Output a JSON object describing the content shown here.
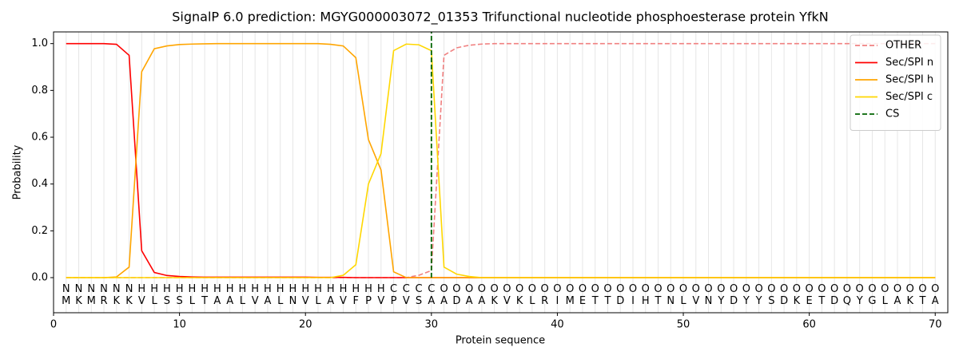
{
  "chart_data": {
    "type": "line",
    "title": "SignalP 6.0 prediction: MGYG000003072_01353 Trifunctional nucleotide phosphoesterase protein YfkN",
    "xlabel": "Protein sequence",
    "ylabel": "Probability",
    "x": [
      1,
      2,
      3,
      4,
      5,
      6,
      7,
      8,
      9,
      10,
      11,
      12,
      13,
      14,
      15,
      16,
      17,
      18,
      19,
      20,
      21,
      22,
      23,
      24,
      25,
      26,
      27,
      28,
      29,
      30,
      31,
      32,
      33,
      34,
      35,
      36,
      37,
      38,
      39,
      40,
      41,
      42,
      43,
      44,
      45,
      46,
      47,
      48,
      49,
      50,
      51,
      52,
      53,
      54,
      55,
      56,
      57,
      58,
      59,
      60,
      61,
      62,
      63,
      64,
      65,
      66,
      67,
      68,
      69,
      70
    ],
    "series": [
      {
        "name": "OTHER",
        "color": "#f08080",
        "dashed": true,
        "values": [
          0,
          0,
          0,
          0,
          0,
          0,
          0,
          0,
          0,
          0,
          0,
          0,
          0,
          0,
          0,
          0,
          0,
          0,
          0,
          0,
          0,
          0,
          0,
          0,
          0,
          0,
          0,
          0,
          0.01,
          0.03,
          0.95,
          0.982,
          0.993,
          0.998,
          1,
          1,
          1,
          1,
          1,
          1,
          1,
          1,
          1,
          1,
          1,
          1,
          1,
          1,
          1,
          1,
          1,
          1,
          1,
          1,
          1,
          1,
          1,
          1,
          1,
          1,
          1,
          1,
          1,
          1,
          1,
          1,
          1,
          1,
          1,
          1
        ]
      },
      {
        "name": "Sec/SPI n",
        "color": "#ff0000",
        "dashed": false,
        "values": [
          1,
          1,
          1,
          1,
          0.997,
          0.95,
          0.115,
          0.022,
          0.009,
          0.005,
          0.003,
          0.002,
          0.002,
          0.002,
          0.002,
          0.002,
          0.002,
          0.002,
          0.002,
          0.002,
          0.001,
          0.001,
          0.001,
          0,
          0,
          0,
          0,
          0,
          0,
          0,
          0,
          0,
          0,
          0,
          0,
          0,
          0,
          0,
          0,
          0,
          0,
          0,
          0,
          0,
          0,
          0,
          0,
          0,
          0,
          0,
          0,
          0,
          0,
          0,
          0,
          0,
          0,
          0,
          0,
          0,
          0,
          0,
          0,
          0,
          0,
          0,
          0,
          0,
          0,
          0
        ]
      },
      {
        "name": "Sec/SPI h",
        "color": "#ffa500",
        "dashed": false,
        "values": [
          0,
          0,
          0,
          0,
          0.003,
          0.045,
          0.88,
          0.978,
          0.99,
          0.996,
          0.998,
          0.999,
          1,
          1,
          1,
          1,
          1,
          1,
          1,
          1,
          1,
          0.997,
          0.99,
          0.94,
          0.59,
          0.46,
          0.025,
          0,
          0,
          0,
          0,
          0,
          0,
          0,
          0,
          0,
          0,
          0,
          0,
          0,
          0,
          0,
          0,
          0,
          0,
          0,
          0,
          0,
          0,
          0,
          0,
          0,
          0,
          0,
          0,
          0,
          0,
          0,
          0,
          0,
          0,
          0,
          0,
          0,
          0,
          0,
          0,
          0,
          0,
          0
        ]
      },
      {
        "name": "Sec/SPI c",
        "color": "#ffd700",
        "dashed": false,
        "values": [
          0,
          0,
          0,
          0,
          0,
          0,
          0,
          0,
          0,
          0,
          0,
          0,
          0,
          0,
          0,
          0,
          0,
          0,
          0,
          0,
          0,
          0,
          0.01,
          0.055,
          0.4,
          0.53,
          0.97,
          0.998,
          0.995,
          0.97,
          0.045,
          0.015,
          0.005,
          0,
          0,
          0,
          0,
          0,
          0,
          0,
          0,
          0,
          0,
          0,
          0,
          0,
          0,
          0,
          0,
          0,
          0,
          0,
          0,
          0,
          0,
          0,
          0,
          0,
          0,
          0,
          0,
          0,
          0,
          0,
          0,
          0,
          0,
          0,
          0,
          0
        ]
      }
    ],
    "cs": {
      "name": "CS",
      "color": "#006400",
      "x": 30
    },
    "residues": [
      "M",
      "K",
      "M",
      "R",
      "K",
      "K",
      "V",
      "L",
      "S",
      "S",
      "L",
      "T",
      "A",
      "A",
      "L",
      "V",
      "A",
      "L",
      "N",
      "V",
      "L",
      "A",
      "V",
      "F",
      "P",
      "V",
      "P",
      "V",
      "S",
      "A",
      "A",
      "D",
      "A",
      "A",
      "K",
      "V",
      "K",
      "L",
      "R",
      "I",
      "M",
      "E",
      "T",
      "T",
      "D",
      "I",
      "H",
      "T",
      "N",
      "L",
      "V",
      "N",
      "Y",
      "D",
      "Y",
      "Y",
      "S",
      "D",
      "K",
      "E",
      "T",
      "D",
      "Q",
      "Y",
      "G",
      "L",
      "A",
      "K",
      "T",
      "A"
    ],
    "region_labels": [
      "N",
      "N",
      "N",
      "N",
      "N",
      "N",
      "H",
      "H",
      "H",
      "H",
      "H",
      "H",
      "H",
      "H",
      "H",
      "H",
      "H",
      "H",
      "H",
      "H",
      "H",
      "H",
      "H",
      "H",
      "H",
      "H",
      "C",
      "C",
      "C",
      "C",
      "O",
      "O",
      "O",
      "O",
      "O",
      "O",
      "O",
      "O",
      "O",
      "O",
      "O",
      "O",
      "O",
      "O",
      "O",
      "O",
      "O",
      "O",
      "O",
      "O",
      "O",
      "O",
      "O",
      "O",
      "O",
      "O",
      "O",
      "O",
      "O",
      "O",
      "O",
      "O",
      "O",
      "O",
      "O",
      "O",
      "O",
      "O",
      "O",
      "O"
    ],
    "region_colors": {
      "N": "#ff0000",
      "H": "#ffa500",
      "C": "#ffd700",
      "O": "#808080"
    },
    "xlim": [
      0,
      71
    ],
    "ylim": [
      -0.15,
      1.05
    ],
    "xticks": [
      0,
      10,
      20,
      30,
      40,
      50,
      60,
      70
    ],
    "yticks": [
      {
        "value": 0,
        "label": "0.0"
      },
      {
        "value": 0.2,
        "label": "0.2"
      },
      {
        "value": 0.4,
        "label": "0.4"
      },
      {
        "value": 0.6,
        "label": "0.6"
      },
      {
        "value": 0.8,
        "label": "0.8"
      },
      {
        "value": 1,
        "label": "1.0"
      }
    ],
    "grid": true,
    "legend": "upper right"
  }
}
